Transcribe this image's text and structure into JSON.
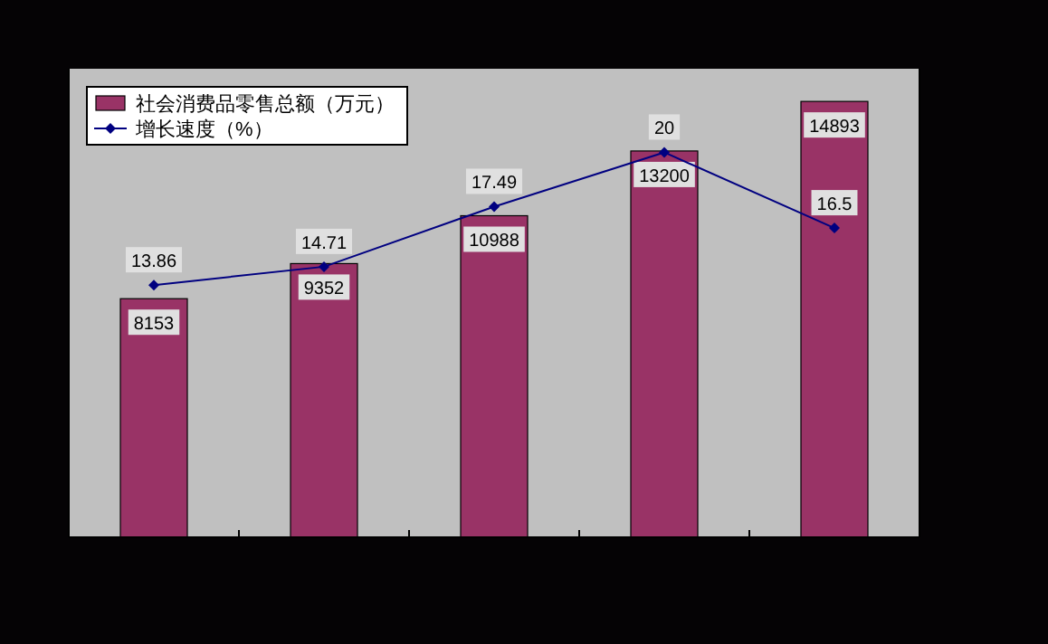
{
  "chart_data": [
    {
      "type": "bar",
      "categories": [
        null,
        null,
        null,
        null,
        null
      ],
      "series": [
        {
          "name": "社会消费品零售总额（万元）",
          "color": "#993366",
          "values": [
            8153,
            9352,
            10988,
            13200,
            14893
          ]
        }
      ],
      "data_labels": true,
      "legend": "top left"
    },
    {
      "type": "line",
      "categories": [
        null,
        null,
        null,
        null,
        null
      ],
      "series": [
        {
          "name": "增长速度（%）",
          "color": "#000080",
          "values": [
            13.86,
            14.71,
            17.49,
            20,
            16.5
          ]
        }
      ],
      "data_labels": true,
      "legend": "top left",
      "marker": "diamond"
    }
  ]
}
